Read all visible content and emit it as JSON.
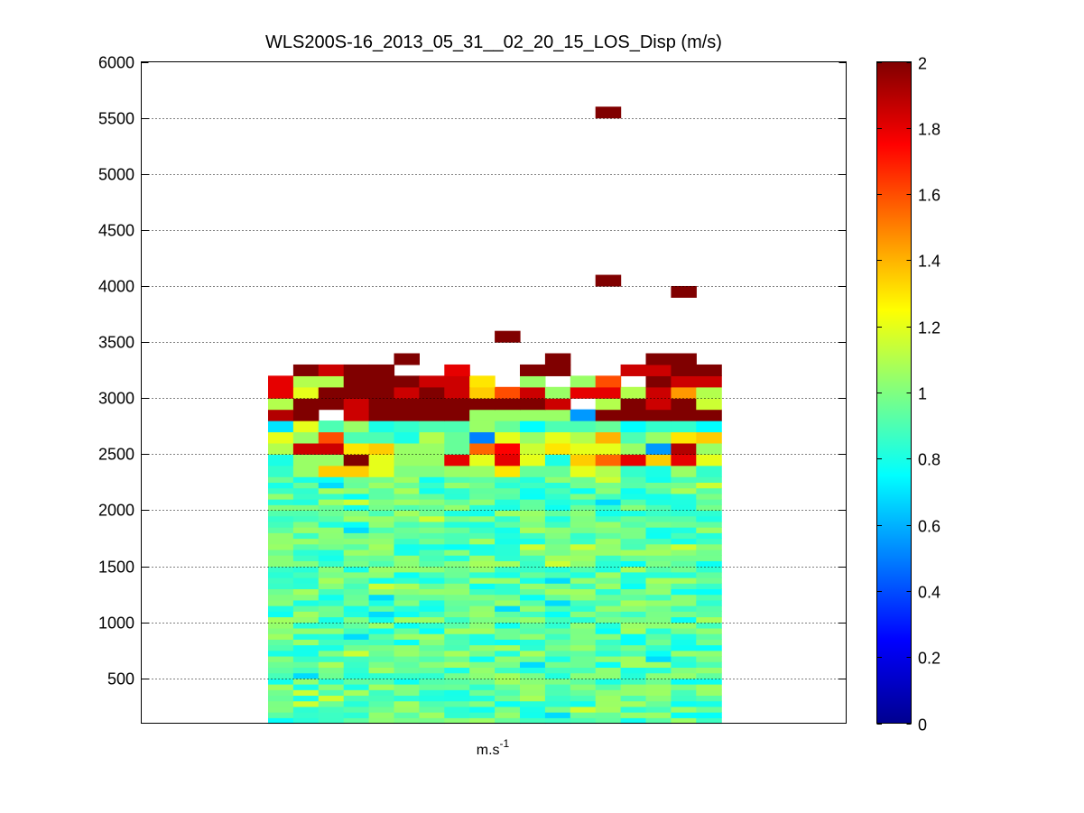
{
  "chart_data": {
    "type": "heatmap",
    "title": "WLS200S-16_2013_05_31__02_20_15_LOS_Disp (m/s)",
    "xlabel": {
      "base": "m.s",
      "sup": "-1"
    },
    "ylabel": "",
    "ylim": [
      100,
      6000
    ],
    "yticks": [
      500,
      1000,
      1500,
      2000,
      2500,
      3000,
      3500,
      4000,
      4500,
      5000,
      5500,
      6000
    ],
    "grid": true,
    "colormap": "jet",
    "colorbar": {
      "min": 0,
      "max": 2,
      "ticks": [
        "0",
        "0.2",
        "0.4",
        "0.6",
        "0.8",
        "1",
        "1.2",
        "1.4",
        "1.6",
        "1.8",
        "2"
      ],
      "colors": [
        "#00008f",
        "#0000ff",
        "#00ffff",
        "#80ff80",
        "#ffff00",
        "#ff8000",
        "#ff0000",
        "#800000"
      ]
    },
    "columns": 18,
    "row_height_m": 50,
    "lower_block": {
      "from_m": 100,
      "to_m": 2300,
      "typical_value": 0.92
    },
    "top_rows": [
      {
        "bottom_m": 2300,
        "values": [
          0.85,
          1.05,
          1.35,
          1.35,
          1.2,
          1.0,
          1.0,
          1.05,
          1.05,
          1.3,
          0.95,
          0.95,
          1.2,
          1.1,
          0.85,
          0.8,
          1.05,
          0.85
        ]
      },
      {
        "bottom_m": 2400,
        "values": [
          0.8,
          1.05,
          1.05,
          2.0,
          1.2,
          1.05,
          1.05,
          1.8,
          1.2,
          1.8,
          1.2,
          0.8,
          1.35,
          1.55,
          1.8,
          1.35,
          1.8,
          1.2
        ]
      },
      {
        "bottom_m": 2500,
        "values": [
          1.1,
          1.85,
          1.85,
          1.3,
          1.35,
          1.05,
          1.05,
          0.95,
          1.55,
          1.75,
          1.15,
          1.3,
          1.2,
          1.2,
          1.05,
          0.55,
          1.9,
          1.05
        ]
      },
      {
        "bottom_m": 2600,
        "values": [
          1.2,
          1.05,
          1.6,
          0.9,
          0.9,
          0.8,
          1.1,
          0.95,
          0.5,
          1.2,
          1.05,
          1.2,
          1.1,
          1.4,
          0.9,
          1.05,
          1.3,
          1.35
        ]
      },
      {
        "bottom_m": 2700,
        "values": [
          0.7,
          1.2,
          0.9,
          1.05,
          0.8,
          0.85,
          0.9,
          0.9,
          1.05,
          0.95,
          0.75,
          0.9,
          0.9,
          0.95,
          0.75,
          0.85,
          0.85,
          0.75
        ]
      },
      {
        "bottom_m": 2800,
        "values": [
          1.9,
          2.0,
          null,
          1.85,
          2.0,
          2.0,
          2.0,
          2.0,
          1.05,
          1.05,
          1.05,
          1.05,
          0.55,
          2.0,
          2.0,
          2.0,
          2.0,
          2.0
        ]
      },
      {
        "bottom_m": 2900,
        "values": [
          1.1,
          2.0,
          2.0,
          1.85,
          2.0,
          2.0,
          2.0,
          2.0,
          2.0,
          2.0,
          2.0,
          1.85,
          null,
          1.1,
          2.0,
          1.85,
          2.0,
          1.15
        ]
      },
      {
        "bottom_m": 3000,
        "values": [
          1.8,
          1.2,
          2.0,
          2.0,
          2.0,
          1.85,
          2.0,
          1.85,
          1.35,
          1.6,
          1.85,
          1.05,
          1.8,
          1.8,
          1.1,
          1.85,
          1.45,
          1.1
        ]
      },
      {
        "bottom_m": 3100,
        "values": [
          1.8,
          1.1,
          1.1,
          2.0,
          2.0,
          2.0,
          1.85,
          1.85,
          1.3,
          null,
          1.05,
          null,
          1.05,
          1.6,
          null,
          2.0,
          1.85,
          1.85
        ]
      },
      {
        "bottom_m": 3200,
        "values": [
          null,
          2.0,
          1.85,
          2.0,
          2.0,
          null,
          null,
          1.8,
          null,
          null,
          2.0,
          2.0,
          null,
          null,
          1.85,
          1.85,
          2.0,
          2.0
        ]
      },
      {
        "bottom_m": 3300,
        "values": [
          null,
          null,
          null,
          null,
          null,
          2.0,
          null,
          null,
          null,
          null,
          null,
          2.0,
          null,
          null,
          null,
          2.0,
          2.0,
          null
        ]
      }
    ],
    "isolated_cells": [
      {
        "col": 9,
        "bottom_m": 3500,
        "value": 2.0
      },
      {
        "col": 13,
        "bottom_m": 4000,
        "value": 2.0
      },
      {
        "col": 16,
        "bottom_m": 3900,
        "value": 2.0
      },
      {
        "col": 13,
        "bottom_m": 5500,
        "value": 2.0
      }
    ]
  }
}
